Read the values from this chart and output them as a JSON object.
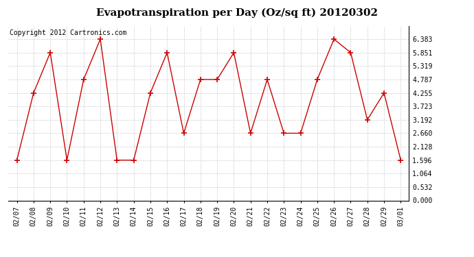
{
  "title": "Evapotranspiration per Day (Oz/sq ft) 20120302",
  "copyright": "Copyright 2012 Cartronics.com",
  "dates": [
    "02/07",
    "02/08",
    "02/09",
    "02/10",
    "02/11",
    "02/12",
    "02/13",
    "02/14",
    "02/15",
    "02/16",
    "02/17",
    "02/18",
    "02/19",
    "02/20",
    "02/21",
    "02/22",
    "02/23",
    "02/24",
    "02/25",
    "02/26",
    "02/27",
    "02/28",
    "02/29",
    "03/01"
  ],
  "values": [
    1.596,
    4.255,
    5.851,
    1.596,
    4.787,
    6.383,
    1.596,
    1.596,
    4.255,
    5.851,
    2.66,
    4.787,
    4.787,
    5.851,
    2.66,
    4.787,
    2.66,
    2.66,
    4.787,
    6.383,
    5.851,
    3.192,
    4.255,
    1.596
  ],
  "ylim": [
    0.0,
    6.915
  ],
  "yticks": [
    0.0,
    0.532,
    1.064,
    1.596,
    2.128,
    2.66,
    3.192,
    3.723,
    4.255,
    4.787,
    5.319,
    5.851,
    6.383
  ],
  "line_color": "#cc0000",
  "marker": "+",
  "marker_size": 6,
  "marker_edge_width": 1.2,
  "line_width": 1.0,
  "bg_color": "#ffffff",
  "grid_color": "#cccccc",
  "title_fontsize": 11,
  "tick_fontsize": 7,
  "copyright_fontsize": 7
}
